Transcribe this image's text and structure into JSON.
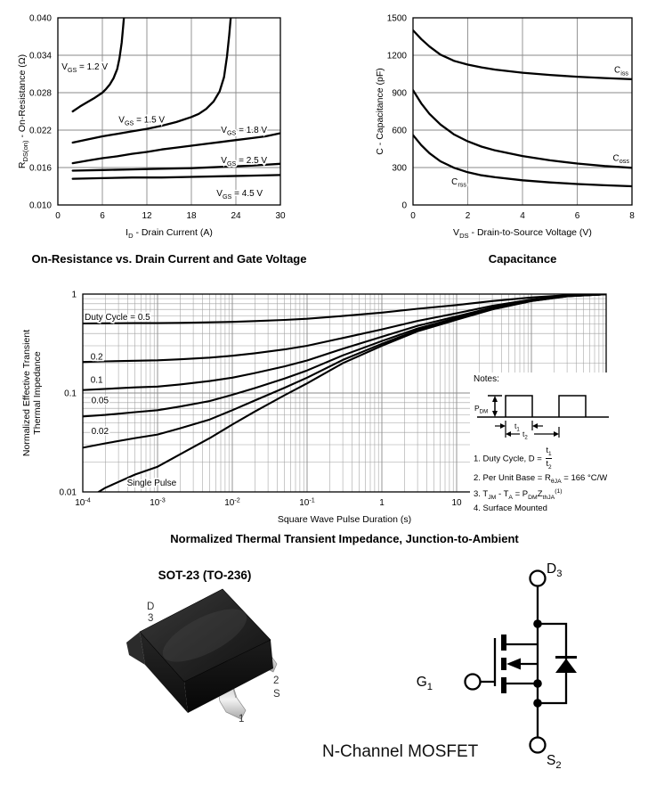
{
  "chart_data": [
    {
      "type": "line",
      "caption": "On-Resistance vs. Drain Current and Gate Voltage",
      "x_axis": {
        "scale": "linear",
        "min": 0,
        "max": 30,
        "ticks": [
          0,
          6,
          12,
          18,
          24,
          30
        ],
        "tick_labels": [
          "0",
          "6",
          "12",
          "18",
          "24",
          "30"
        ],
        "title_segs": [
          {
            "t": "I"
          },
          {
            "s": "D"
          },
          {
            "t": " - Drain Current (A)"
          }
        ]
      },
      "y_axis": {
        "scale": "linear",
        "min": 0.01,
        "max": 0.04,
        "ticks": [
          0.01,
          0.016,
          0.022,
          0.028,
          0.034,
          0.04
        ],
        "tick_labels": [
          "0.010",
          "0.016",
          "0.022",
          "0.028",
          "0.034",
          "0.040"
        ],
        "title_lines": [
          [
            {
              "t": "R"
            },
            {
              "s": "DS(on)"
            },
            {
              "t": " - On-Resistance (Ω)"
            }
          ]
        ]
      },
      "series": [
        {
          "name": "VGS = 1.2 V",
          "points": [
            [
              2,
              0.025
            ],
            [
              3,
              0.0258
            ],
            [
              4,
              0.0265
            ],
            [
              5,
              0.0272
            ],
            [
              6,
              0.028
            ],
            [
              6.5,
              0.0286
            ],
            [
              7,
              0.0293
            ],
            [
              7.5,
              0.0303
            ],
            [
              8,
              0.0318
            ],
            [
              8.3,
              0.0335
            ],
            [
              8.6,
              0.036
            ],
            [
              8.8,
              0.0385
            ],
            [
              8.9,
              0.04
            ]
          ]
        },
        {
          "name": "VGS = 1.5 V",
          "points": [
            [
              2,
              0.02
            ],
            [
              4,
              0.0205
            ],
            [
              6,
              0.021
            ],
            [
              8,
              0.0214
            ],
            [
              10,
              0.0218
            ],
            [
              12,
              0.0222
            ],
            [
              14,
              0.0227
            ],
            [
              16,
              0.0233
            ],
            [
              18,
              0.0241
            ],
            [
              19,
              0.0246
            ],
            [
              20,
              0.0254
            ],
            [
              21,
              0.0266
            ],
            [
              21.8,
              0.0282
            ],
            [
              22.4,
              0.0305
            ],
            [
              22.8,
              0.0338
            ],
            [
              23.1,
              0.0372
            ],
            [
              23.3,
              0.04
            ]
          ]
        },
        {
          "name": "VGS = 1.8 V",
          "points": [
            [
              2,
              0.0167
            ],
            [
              4,
              0.0171
            ],
            [
              6,
              0.0175
            ],
            [
              8,
              0.0178
            ],
            [
              10,
              0.0182
            ],
            [
              12,
              0.0185
            ],
            [
              14,
              0.0189
            ],
            [
              16,
              0.0192
            ],
            [
              18,
              0.0195
            ],
            [
              20,
              0.0198
            ],
            [
              22,
              0.0201
            ],
            [
              24,
              0.0204
            ],
            [
              26,
              0.0207
            ],
            [
              28,
              0.021
            ],
            [
              30,
              0.0215
            ]
          ]
        },
        {
          "name": "VGS = 2.5 V",
          "points": [
            [
              2,
              0.0155
            ],
            [
              6,
              0.0156
            ],
            [
              10,
              0.0157
            ],
            [
              14,
              0.0158
            ],
            [
              18,
              0.0159
            ],
            [
              22,
              0.0161
            ],
            [
              26,
              0.0163
            ],
            [
              30,
              0.0166
            ]
          ]
        },
        {
          "name": "VGS = 4.5 V",
          "points": [
            [
              2,
              0.0142
            ],
            [
              6,
              0.0143
            ],
            [
              10,
              0.0144
            ],
            [
              14,
              0.0144
            ],
            [
              18,
              0.0145
            ],
            [
              22,
              0.0146
            ],
            [
              26,
              0.0147
            ],
            [
              30,
              0.0148
            ]
          ]
        }
      ],
      "annotations": [
        {
          "segs": [
            {
              "t": "V"
            },
            {
              "s": "GS"
            },
            {
              "t": " = 1.2 V"
            }
          ],
          "x": 0.5,
          "y": 0.0317
        },
        {
          "segs": [
            {
              "t": "V"
            },
            {
              "s": "GS"
            },
            {
              "t": " = 1.5 V"
            }
          ],
          "x": 8.2,
          "y": 0.0232
        },
        {
          "segs": [
            {
              "t": "V"
            },
            {
              "s": "GS"
            },
            {
              "t": " = 1.8 V"
            }
          ],
          "x": 22,
          "y": 0.0216
        },
        {
          "segs": [
            {
              "t": "V"
            },
            {
              "s": "GS"
            },
            {
              "t": " = 2.5 V"
            }
          ],
          "x": 22,
          "y": 0.0167
        },
        {
          "segs": [
            {
              "t": "V"
            },
            {
              "s": "GS"
            },
            {
              "t": " = 4.5 V"
            }
          ],
          "x": 21.4,
          "y": 0.0114
        }
      ]
    },
    {
      "type": "line",
      "caption": "Capacitance",
      "x_axis": {
        "scale": "linear",
        "min": 0,
        "max": 8,
        "ticks": [
          0,
          2,
          4,
          6,
          8
        ],
        "tick_labels": [
          "0",
          "2",
          "4",
          "6",
          "8"
        ],
        "title_segs": [
          {
            "t": "V"
          },
          {
            "s": "DS"
          },
          {
            "t": " - Drain-to-Source Voltage (V)"
          }
        ]
      },
      "y_axis": {
        "scale": "linear",
        "min": 0,
        "max": 1500,
        "ticks": [
          0,
          300,
          600,
          900,
          1200,
          1500
        ],
        "tick_labels": [
          "0",
          "300",
          "600",
          "900",
          "1200",
          "1500"
        ],
        "title_lines": [
          [
            {
              "t": "C - Capacitance (pF)"
            }
          ]
        ]
      },
      "series": [
        {
          "name": "Ciss",
          "points": [
            [
              0,
              1400
            ],
            [
              0.3,
              1330
            ],
            [
              0.6,
              1270
            ],
            [
              1,
              1205
            ],
            [
              1.5,
              1155
            ],
            [
              2,
              1125
            ],
            [
              2.5,
              1103
            ],
            [
              3,
              1085
            ],
            [
              4,
              1060
            ],
            [
              5,
              1042
            ],
            [
              6,
              1028
            ],
            [
              7,
              1017
            ],
            [
              8,
              1008
            ]
          ]
        },
        {
          "name": "Coss",
          "points": [
            [
              0,
              920
            ],
            [
              0.3,
              815
            ],
            [
              0.6,
              730
            ],
            [
              1,
              645
            ],
            [
              1.5,
              565
            ],
            [
              2,
              510
            ],
            [
              2.5,
              468
            ],
            [
              3,
              437
            ],
            [
              4,
              392
            ],
            [
              5,
              358
            ],
            [
              6,
              332
            ],
            [
              7,
              312
            ],
            [
              8,
              298
            ]
          ]
        },
        {
          "name": "Crss",
          "points": [
            [
              0,
              560
            ],
            [
              0.3,
              480
            ],
            [
              0.6,
              415
            ],
            [
              1,
              350
            ],
            [
              1.5,
              298
            ],
            [
              2,
              262
            ],
            [
              2.5,
              238
            ],
            [
              3,
              222
            ],
            [
              4,
              198
            ],
            [
              5,
              181
            ],
            [
              6,
              168
            ],
            [
              7,
              158
            ],
            [
              8,
              150
            ]
          ]
        }
      ],
      "annotations": [
        {
          "segs": [
            {
              "t": "C"
            },
            {
              "s": "iss"
            }
          ],
          "x": 7.35,
          "y": 1060
        },
        {
          "segs": [
            {
              "t": "C"
            },
            {
              "s": "oss"
            }
          ],
          "x": 7.3,
          "y": 355
        },
        {
          "segs": [
            {
              "t": "C"
            },
            {
              "s": "rss"
            }
          ],
          "x": 1.4,
          "y": 165
        }
      ]
    },
    {
      "type": "line",
      "caption": "Normalized Thermal Transient Impedance, Junction-to-Ambient",
      "x_axis": {
        "scale": "log",
        "min": 0.0001,
        "max": 1000,
        "ticks": [
          0.0001,
          0.001,
          0.01,
          0.1,
          1,
          10,
          100,
          1000
        ],
        "tick_label_segs": [
          [
            {
              "t": "10"
            },
            {
              "sup": "-4"
            }
          ],
          [
            {
              "t": "10"
            },
            {
              "sup": "-3"
            }
          ],
          [
            {
              "t": "10"
            },
            {
              "sup": "-2"
            }
          ],
          [
            {
              "t": "10"
            },
            {
              "sup": "-1"
            }
          ],
          [
            {
              "t": "1"
            }
          ],
          [
            {
              "t": "10"
            }
          ],
          [
            {
              "t": "100"
            }
          ],
          [
            {
              "t": "1000"
            }
          ]
        ],
        "title_segs": [
          {
            "t": "Square Wave Pulse Duration (s)"
          }
        ]
      },
      "y_axis": {
        "scale": "log",
        "min": 0.01,
        "max": 1,
        "ticks": [
          0.01,
          0.1,
          1
        ],
        "tick_labels": [
          "0.01",
          "0.1",
          "1"
        ],
        "title_lines": [
          [
            {
              "t": "Normalized Effective Transient"
            }
          ],
          [
            {
              "t": "Thermal Impedance"
            }
          ]
        ]
      },
      "x": [
        0.0001,
        0.0002,
        0.0005,
        0.001,
        0.002,
        0.005,
        0.01,
        0.02,
        0.05,
        0.1,
        0.3,
        1,
        3,
        10,
        30,
        100,
        300,
        1000
      ],
      "series": [
        {
          "name": "Duty Cycle = 0.5",
          "values": [
            0.504,
            0.506,
            0.508,
            0.509,
            0.512,
            0.518,
            0.524,
            0.533,
            0.548,
            0.563,
            0.6,
            0.65,
            0.71,
            0.775,
            0.85,
            0.925,
            0.975,
            0.998
          ]
        },
        {
          "name": "0.2",
          "values": [
            0.206,
            0.209,
            0.212,
            0.214,
            0.219,
            0.228,
            0.238,
            0.252,
            0.276,
            0.3,
            0.36,
            0.44,
            0.536,
            0.64,
            0.76,
            0.88,
            0.96,
            0.996
          ]
        },
        {
          "name": "0.1",
          "values": [
            0.107,
            0.11,
            0.114,
            0.116,
            0.122,
            0.132,
            0.143,
            0.159,
            0.186,
            0.213,
            0.28,
            0.37,
            0.478,
            0.595,
            0.73,
            0.865,
            0.955,
            0.996
          ]
        },
        {
          "name": "0.05",
          "values": [
            0.058,
            0.06,
            0.064,
            0.067,
            0.073,
            0.083,
            0.096,
            0.112,
            0.14,
            0.169,
            0.24,
            0.335,
            0.449,
            0.573,
            0.715,
            0.858,
            0.953,
            0.995
          ]
        },
        {
          "name": "0.02",
          "values": [
            0.028,
            0.031,
            0.035,
            0.038,
            0.044,
            0.054,
            0.067,
            0.084,
            0.113,
            0.143,
            0.216,
            0.314,
            0.432,
            0.559,
            0.706,
            0.853,
            0.951,
            0.995
          ]
        },
        {
          "name": "Single Pulse",
          "values": [
            0.008,
            0.011,
            0.015,
            0.018,
            0.024,
            0.035,
            0.048,
            0.065,
            0.095,
            0.125,
            0.2,
            0.3,
            0.42,
            0.55,
            0.7,
            0.85,
            0.95,
            0.995
          ]
        }
      ],
      "annotations": [
        {
          "segs": [
            {
              "t": "Duty Cycle = 0.5"
            }
          ],
          "x": 0.000106,
          "y": 0.55
        },
        {
          "segs": [
            {
              "t": "0.2"
            }
          ],
          "x": 0.000127,
          "y": 0.218
        },
        {
          "segs": [
            {
              "t": "0.1"
            }
          ],
          "x": 0.000127,
          "y": 0.127
        },
        {
          "segs": [
            {
              "t": "0.05"
            }
          ],
          "x": 0.00013,
          "y": 0.079
        },
        {
          "segs": [
            {
              "t": "0.02"
            }
          ],
          "x": 0.00013,
          "y": 0.0385
        },
        {
          "segs": [
            {
              "t": "Single Pulse"
            }
          ],
          "x": 0.00039,
          "y": 0.0116
        }
      ],
      "notes": {
        "title": "Notes:",
        "waveform": {
          "pdm": [
            {
              "t": "P"
            },
            {
              "s": "DM"
            }
          ],
          "t1": [
            {
              "t": "t"
            },
            {
              "s": "1"
            }
          ],
          "t2": [
            {
              "t": "t"
            },
            {
              "s": "2"
            }
          ]
        },
        "lines": [
          [
            {
              "t": "1. Duty Cycle, D = "
            },
            {
              "frac": {
                "n": [
                  {
                    "t": "t"
                  },
                  {
                    "s": "1"
                  }
                ],
                "d": [
                  {
                    "t": "t"
                  },
                  {
                    "s": "2"
                  }
                ]
              }
            }
          ],
          [
            {
              "t": "2. Per Unit Base = R"
            },
            {
              "s": "θJA"
            },
            {
              "t": " = 166 °C/W"
            }
          ],
          [
            {
              "t": "3. T"
            },
            {
              "s": "JM"
            },
            {
              "t": " - T"
            },
            {
              "s": "A"
            },
            {
              "t": " = P"
            },
            {
              "s": "DM"
            },
            {
              "t": "Z"
            },
            {
              "s": "thJA"
            },
            {
              "sup": "(1)"
            }
          ],
          [
            {
              "t": "4. Surface Mounted"
            }
          ]
        ]
      }
    }
  ],
  "package_figure": {
    "title": "SOT-23 (TO-236)",
    "pins": {
      "d_name": "D",
      "d_num": "3",
      "s_num": "2",
      "s_name": "S",
      "g_num": "1"
    }
  },
  "schematic": {
    "label": "N-Channel MOSFET",
    "drain": [
      {
        "t": "D"
      },
      {
        "s": "3"
      }
    ],
    "gate": [
      {
        "t": "G"
      },
      {
        "s": "1"
      }
    ],
    "source": [
      {
        "t": "S"
      },
      {
        "s": "2"
      }
    ]
  }
}
